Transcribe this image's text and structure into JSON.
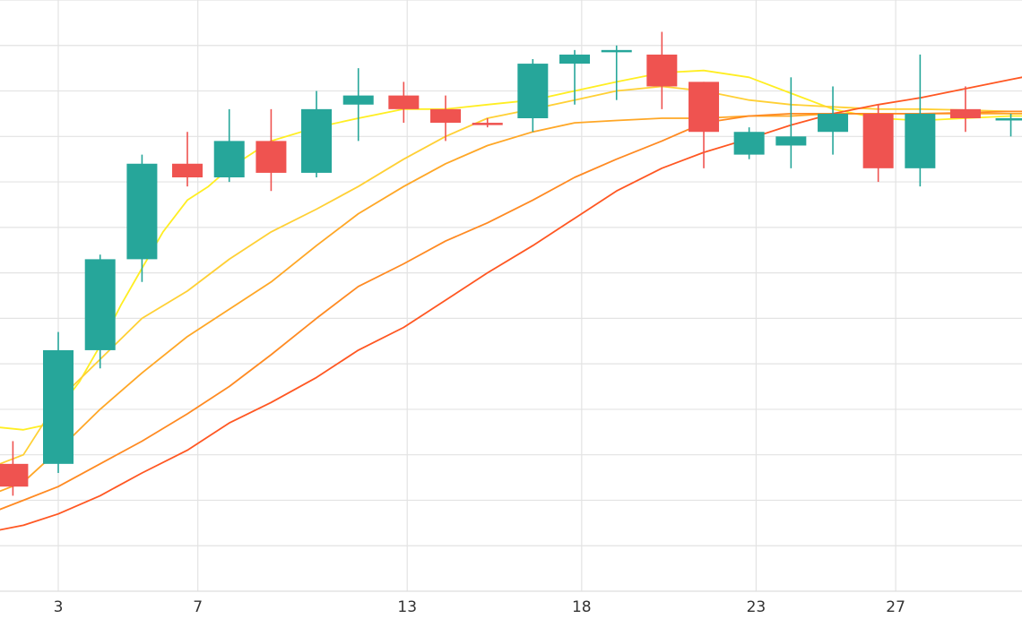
{
  "chart_data": {
    "type": "candlestick",
    "x_ticks": [
      {
        "x": 3,
        "label": "3"
      },
      {
        "x": 7,
        "label": "7"
      },
      {
        "x": 13,
        "label": "13"
      },
      {
        "x": 18,
        "label": "18"
      },
      {
        "x": 23,
        "label": "23"
      },
      {
        "x": 27,
        "label": "27"
      }
    ],
    "xlim": [
      1.33,
      30.62
    ],
    "ylim": [
      0,
      13
    ],
    "grid": true,
    "colors": {
      "up": "#26a69a",
      "down": "#ef5350",
      "grid": "#e3e3e3",
      "axis": "#dddddd"
    },
    "candles": [
      {
        "x": 1.7,
        "open": 2.8,
        "high": 3.3,
        "low": 2.1,
        "close": 2.3
      },
      {
        "x": 3.0,
        "open": 2.8,
        "high": 5.7,
        "low": 2.6,
        "close": 5.3
      },
      {
        "x": 4.2,
        "open": 5.3,
        "high": 7.4,
        "low": 4.9,
        "close": 7.3
      },
      {
        "x": 5.4,
        "open": 7.3,
        "high": 9.6,
        "low": 6.8,
        "close": 9.4
      },
      {
        "x": 6.7,
        "open": 9.4,
        "high": 10.1,
        "low": 8.9,
        "close": 9.1
      },
      {
        "x": 7.9,
        "open": 9.1,
        "high": 10.6,
        "low": 9.0,
        "close": 9.9
      },
      {
        "x": 9.1,
        "open": 9.9,
        "high": 10.6,
        "low": 8.8,
        "close": 9.2
      },
      {
        "x": 10.4,
        "open": 9.2,
        "high": 11.0,
        "low": 9.1,
        "close": 10.6
      },
      {
        "x": 11.6,
        "open": 10.7,
        "high": 11.5,
        "low": 9.9,
        "close": 10.9
      },
      {
        "x": 12.9,
        "open": 10.9,
        "high": 11.2,
        "low": 10.3,
        "close": 10.6
      },
      {
        "x": 14.1,
        "open": 10.6,
        "high": 10.9,
        "low": 9.9,
        "close": 10.3
      },
      {
        "x": 15.3,
        "open": 10.3,
        "high": 10.4,
        "low": 10.2,
        "close": 10.25
      },
      {
        "x": 16.6,
        "open": 10.4,
        "high": 11.7,
        "low": 10.1,
        "close": 11.6
      },
      {
        "x": 17.8,
        "open": 11.6,
        "high": 11.9,
        "low": 10.7,
        "close": 11.8
      },
      {
        "x": 19.0,
        "open": 11.9,
        "high": 12.0,
        "low": 10.8,
        "close": 11.9
      },
      {
        "x": 20.3,
        "open": 11.8,
        "high": 12.3,
        "low": 10.6,
        "close": 11.1
      },
      {
        "x": 21.5,
        "open": 11.2,
        "high": 11.2,
        "low": 9.3,
        "close": 10.1
      },
      {
        "x": 22.8,
        "open": 9.6,
        "high": 10.2,
        "low": 9.5,
        "close": 10.1
      },
      {
        "x": 24.0,
        "open": 9.8,
        "high": 11.3,
        "low": 9.3,
        "close": 10.0
      },
      {
        "x": 25.2,
        "open": 10.1,
        "high": 11.1,
        "low": 9.6,
        "close": 10.5
      },
      {
        "x": 26.5,
        "open": 10.5,
        "high": 10.7,
        "low": 9.0,
        "close": 9.3
      },
      {
        "x": 27.7,
        "open": 9.3,
        "high": 11.8,
        "low": 8.9,
        "close": 10.5
      },
      {
        "x": 29.0,
        "open": 10.6,
        "high": 11.1,
        "low": 10.1,
        "close": 10.4
      },
      {
        "x": 30.3,
        "open": 10.4,
        "high": 10.5,
        "low": 10.0,
        "close": 10.4
      }
    ],
    "series": [
      {
        "color": "#ffee22",
        "x": [
          1.33,
          2.0,
          2.6,
          3.0,
          3.6,
          4.2,
          4.8,
          5.4,
          6.0,
          6.7,
          7.3,
          7.9,
          8.5,
          9.1,
          10.4,
          11.6,
          12.9,
          14.1,
          15.3,
          16.6,
          17.8,
          19.0,
          20.3,
          21.5,
          22.8,
          24.0,
          25.2,
          26.5,
          27.7,
          29.0,
          30.3,
          30.62
        ],
        "y": [
          3.6,
          3.55,
          3.65,
          4.0,
          4.6,
          5.4,
          6.3,
          7.1,
          7.9,
          8.6,
          8.9,
          9.3,
          9.6,
          9.9,
          10.2,
          10.4,
          10.6,
          10.6,
          10.7,
          10.8,
          11.0,
          11.2,
          11.4,
          11.45,
          11.3,
          10.95,
          10.6,
          10.4,
          10.35,
          10.4,
          10.45,
          10.45
        ]
      },
      {
        "color": "#ffd035",
        "x": [
          1.33,
          2.0,
          3.0,
          4.2,
          5.4,
          6.7,
          7.9,
          9.1,
          10.4,
          11.6,
          12.9,
          14.1,
          15.3,
          16.6,
          17.8,
          19.0,
          20.3,
          21.5,
          22.8,
          24.0,
          25.2,
          26.5,
          27.7,
          29.0,
          30.3,
          30.62
        ],
        "y": [
          2.8,
          3.0,
          4.2,
          5.1,
          6.0,
          6.6,
          7.3,
          7.9,
          8.4,
          8.9,
          9.5,
          10.0,
          10.4,
          10.6,
          10.8,
          11.0,
          11.1,
          11.0,
          10.8,
          10.7,
          10.65,
          10.6,
          10.6,
          10.58,
          10.55,
          10.55
        ]
      },
      {
        "color": "#ffa726",
        "x": [
          1.33,
          2.0,
          3.0,
          4.2,
          5.4,
          6.7,
          7.9,
          9.1,
          10.4,
          11.6,
          12.9,
          14.1,
          15.3,
          16.6,
          17.8,
          19.0,
          20.3,
          21.5,
          22.8,
          24.0,
          25.2,
          26.5,
          27.7,
          29.0,
          30.3,
          30.62
        ],
        "y": [
          2.2,
          2.4,
          3.1,
          4.0,
          4.8,
          5.6,
          6.2,
          6.8,
          7.6,
          8.3,
          8.9,
          9.4,
          9.8,
          10.1,
          10.3,
          10.35,
          10.4,
          10.4,
          10.45,
          10.45,
          10.5,
          10.5,
          10.5,
          10.5,
          10.5,
          10.5
        ]
      },
      {
        "color": "#ff8a22",
        "x": [
          1.33,
          2.0,
          3.0,
          4.2,
          5.4,
          6.7,
          7.9,
          9.1,
          10.4,
          11.6,
          12.9,
          14.1,
          15.3,
          16.6,
          17.8,
          19.0,
          20.3,
          21.5,
          22.8,
          24.0,
          25.2,
          26.5,
          27.7,
          29.0,
          30.3,
          30.62
        ],
        "y": [
          1.8,
          2.0,
          2.3,
          2.8,
          3.3,
          3.9,
          4.5,
          5.2,
          6.0,
          6.7,
          7.2,
          7.7,
          8.1,
          8.6,
          9.1,
          9.5,
          9.9,
          10.3,
          10.45,
          10.5,
          10.5,
          10.5,
          10.5,
          10.52,
          10.55,
          10.55
        ]
      },
      {
        "color": "#ff5722",
        "x": [
          1.33,
          2.0,
          3.0,
          4.2,
          5.4,
          6.7,
          7.9,
          9.1,
          10.4,
          11.6,
          12.9,
          14.1,
          15.3,
          16.6,
          17.8,
          19.0,
          20.3,
          21.5,
          22.8,
          24.0,
          25.2,
          26.5,
          27.7,
          29.0,
          30.3,
          30.62
        ],
        "y": [
          1.35,
          1.45,
          1.7,
          2.1,
          2.6,
          3.1,
          3.7,
          4.15,
          4.7,
          5.3,
          5.8,
          6.4,
          7.0,
          7.6,
          8.2,
          8.8,
          9.3,
          9.65,
          9.95,
          10.25,
          10.5,
          10.7,
          10.85,
          11.05,
          11.25,
          11.3
        ]
      }
    ]
  }
}
